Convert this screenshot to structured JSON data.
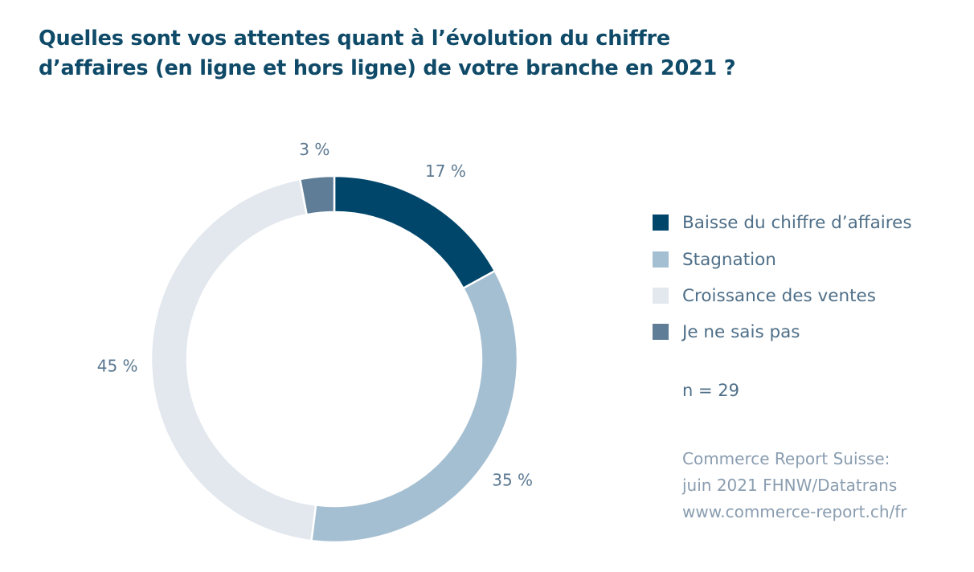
{
  "title_lines": [
    "Quelles sont vos attentes quant à l’évolution du chiffre",
    "d’affaires (en ligne et hors ligne) de votre branche en 2021 ?"
  ],
  "chart_data": {
    "type": "pie",
    "title": "Quelles sont vos attentes quant à l’évolution du chiffre d’affaires (en ligne et hors ligne) de votre branche en 2021 ?",
    "donut": true,
    "categories": [
      "Baisse du chiffre d’affaires",
      "Stagnation",
      "Croissance des ventes",
      "Je ne sais pas"
    ],
    "values": [
      17,
      35,
      45,
      3
    ],
    "value_labels": [
      "17 %",
      "35 %",
      "45 %",
      "3 %"
    ],
    "colors": [
      "#00466b",
      "#a5bfd2",
      "#e2e8ee",
      "#5f7d97"
    ],
    "legend_position": "right"
  },
  "legend": [
    {
      "label": "Baisse du chiffre d’affaires",
      "color": "#00466b"
    },
    {
      "label": "Stagnation",
      "color": "#a5bfd2"
    },
    {
      "label": "Croissance des ventes",
      "color": "#e2e8ee"
    },
    {
      "label": "Je ne sais pas",
      "color": "#5f7d97"
    }
  ],
  "sample_size": "n = 29",
  "source_lines": [
    "Commerce Report Suisse:",
    "juin 2021 FHNW/Datatrans",
    "www.commerce-report.ch/fr"
  ]
}
